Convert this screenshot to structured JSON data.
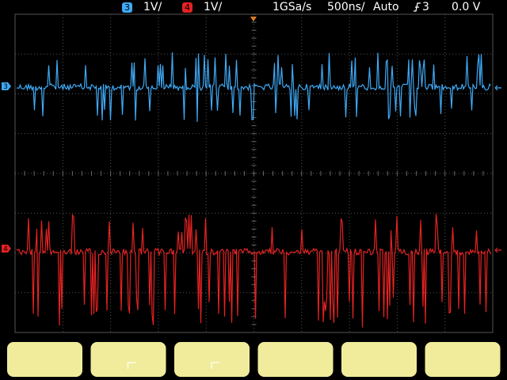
{
  "header": {
    "channel_a": {
      "number": "3",
      "scale": "1V/"
    },
    "channel_b": {
      "number": "4",
      "scale": "1V/"
    },
    "sample_rate": "1GSa/s",
    "timebase": "500ns/",
    "trigger_mode": "Auto",
    "trigger_source": "3",
    "trigger_level": "0.0 V"
  },
  "markers": {
    "channel_a": "3",
    "channel_b": "4"
  }
}
